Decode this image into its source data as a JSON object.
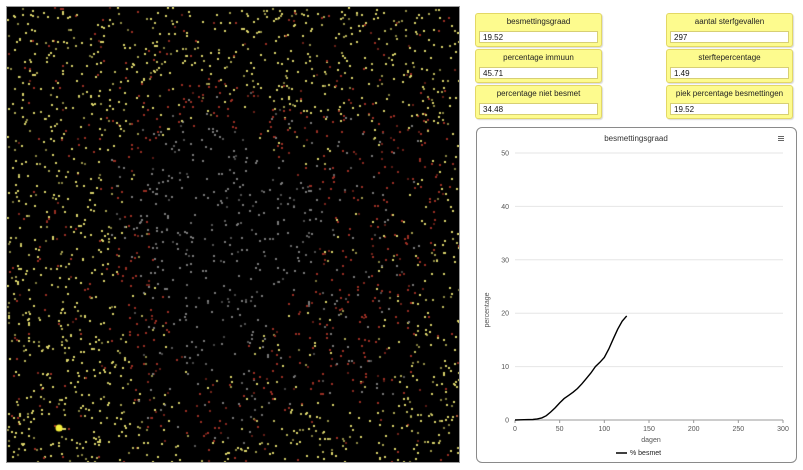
{
  "monitors": {
    "besmettingsgraad": {
      "label": "besmettingsgraad",
      "value": "19.52"
    },
    "percentage_immuun": {
      "label": "percentage immuun",
      "value": "45.71"
    },
    "percentage_niet_besmet": {
      "label": "percentage niet besmet",
      "value": "34.48"
    },
    "aantal_sterfgevallen": {
      "label": "aantal sterfgevallen",
      "value": "297"
    },
    "sterftepercentage": {
      "label": "sterftepercentage",
      "value": "1.49"
    },
    "piek_percentage": {
      "label": "piek percentage besmettingen",
      "value": "19.52"
    }
  },
  "plot": {
    "menu_icon": "hamburger-menu-icon"
  },
  "chart_data": {
    "type": "line",
    "title": "besmettingsgraad",
    "xlabel": "dagen",
    "ylabel": "percentage",
    "xlim": [
      0,
      300
    ],
    "ylim": [
      0,
      50
    ],
    "xticks": [
      0,
      50,
      100,
      150,
      200,
      250,
      300
    ],
    "yticks": [
      0,
      10,
      20,
      30,
      40,
      50
    ],
    "grid": "horizontal",
    "legend_position": "bottom",
    "series": [
      {
        "name": "% besmet",
        "color": "#000000",
        "x": [
          0,
          10,
          20,
          25,
          30,
          35,
          40,
          45,
          50,
          55,
          60,
          65,
          70,
          75,
          80,
          85,
          90,
          95,
          100,
          105,
          110,
          115,
          120,
          125
        ],
        "y": [
          0,
          0.05,
          0.1,
          0.2,
          0.4,
          0.8,
          1.5,
          2.3,
          3.2,
          4.0,
          4.6,
          5.2,
          5.9,
          6.8,
          7.8,
          8.8,
          10.0,
          10.8,
          11.7,
          13.3,
          15.2,
          17.0,
          18.5,
          19.5
        ]
      }
    ]
  },
  "colors": {
    "monitor_bg": "#fdfb8e",
    "agent_yellow": "#d9d36a",
    "agent_red": "#9b2f24",
    "agent_gray": "#7a7a7a"
  }
}
